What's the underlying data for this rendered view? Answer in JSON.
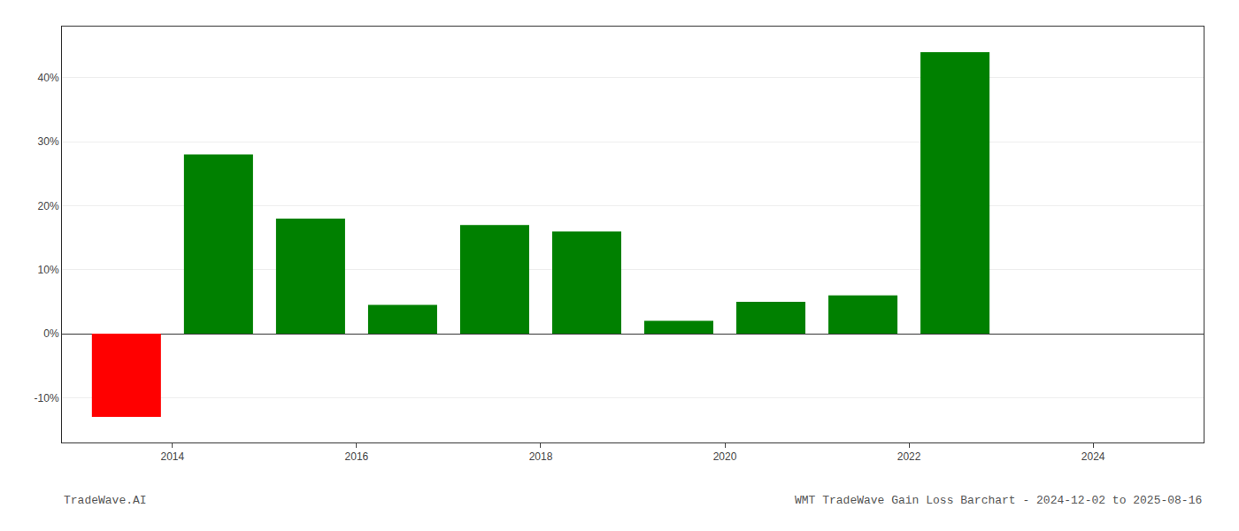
{
  "chart_data": {
    "type": "bar",
    "title": "WMT TradeWave Gain Loss Barchart - 2024-12-02 to 2025-08-16",
    "annotations": [
      {
        "text": "TradeWave.AI"
      }
    ],
    "x": [
      2013.5,
      2014.5,
      2015.5,
      2016.5,
      2017.5,
      2018.5,
      2019.5,
      2020.5,
      2021.5,
      2022.5
    ],
    "values": [
      -13.0,
      28.0,
      18.0,
      4.5,
      17.0,
      16.0,
      2.0,
      5.0,
      6.0,
      44.0
    ],
    "colors": [
      "#ff0000",
      "#008000",
      "#008000",
      "#008000",
      "#008000",
      "#008000",
      "#008000",
      "#008000",
      "#008000",
      "#008000"
    ],
    "xlim": [
      2012.8,
      2025.2
    ],
    "xticks": [
      2014,
      2016,
      2018,
      2020,
      2022,
      2024
    ],
    "ylim": [
      -17,
      48
    ],
    "yticks": [
      {
        "value": -10,
        "label": "-10%"
      },
      {
        "value": 0,
        "label": "0%"
      },
      {
        "value": 10,
        "label": "10%"
      },
      {
        "value": 20,
        "label": "20%"
      },
      {
        "value": 30,
        "label": "30%"
      },
      {
        "value": 40,
        "label": "40%"
      }
    ],
    "grid": true
  }
}
